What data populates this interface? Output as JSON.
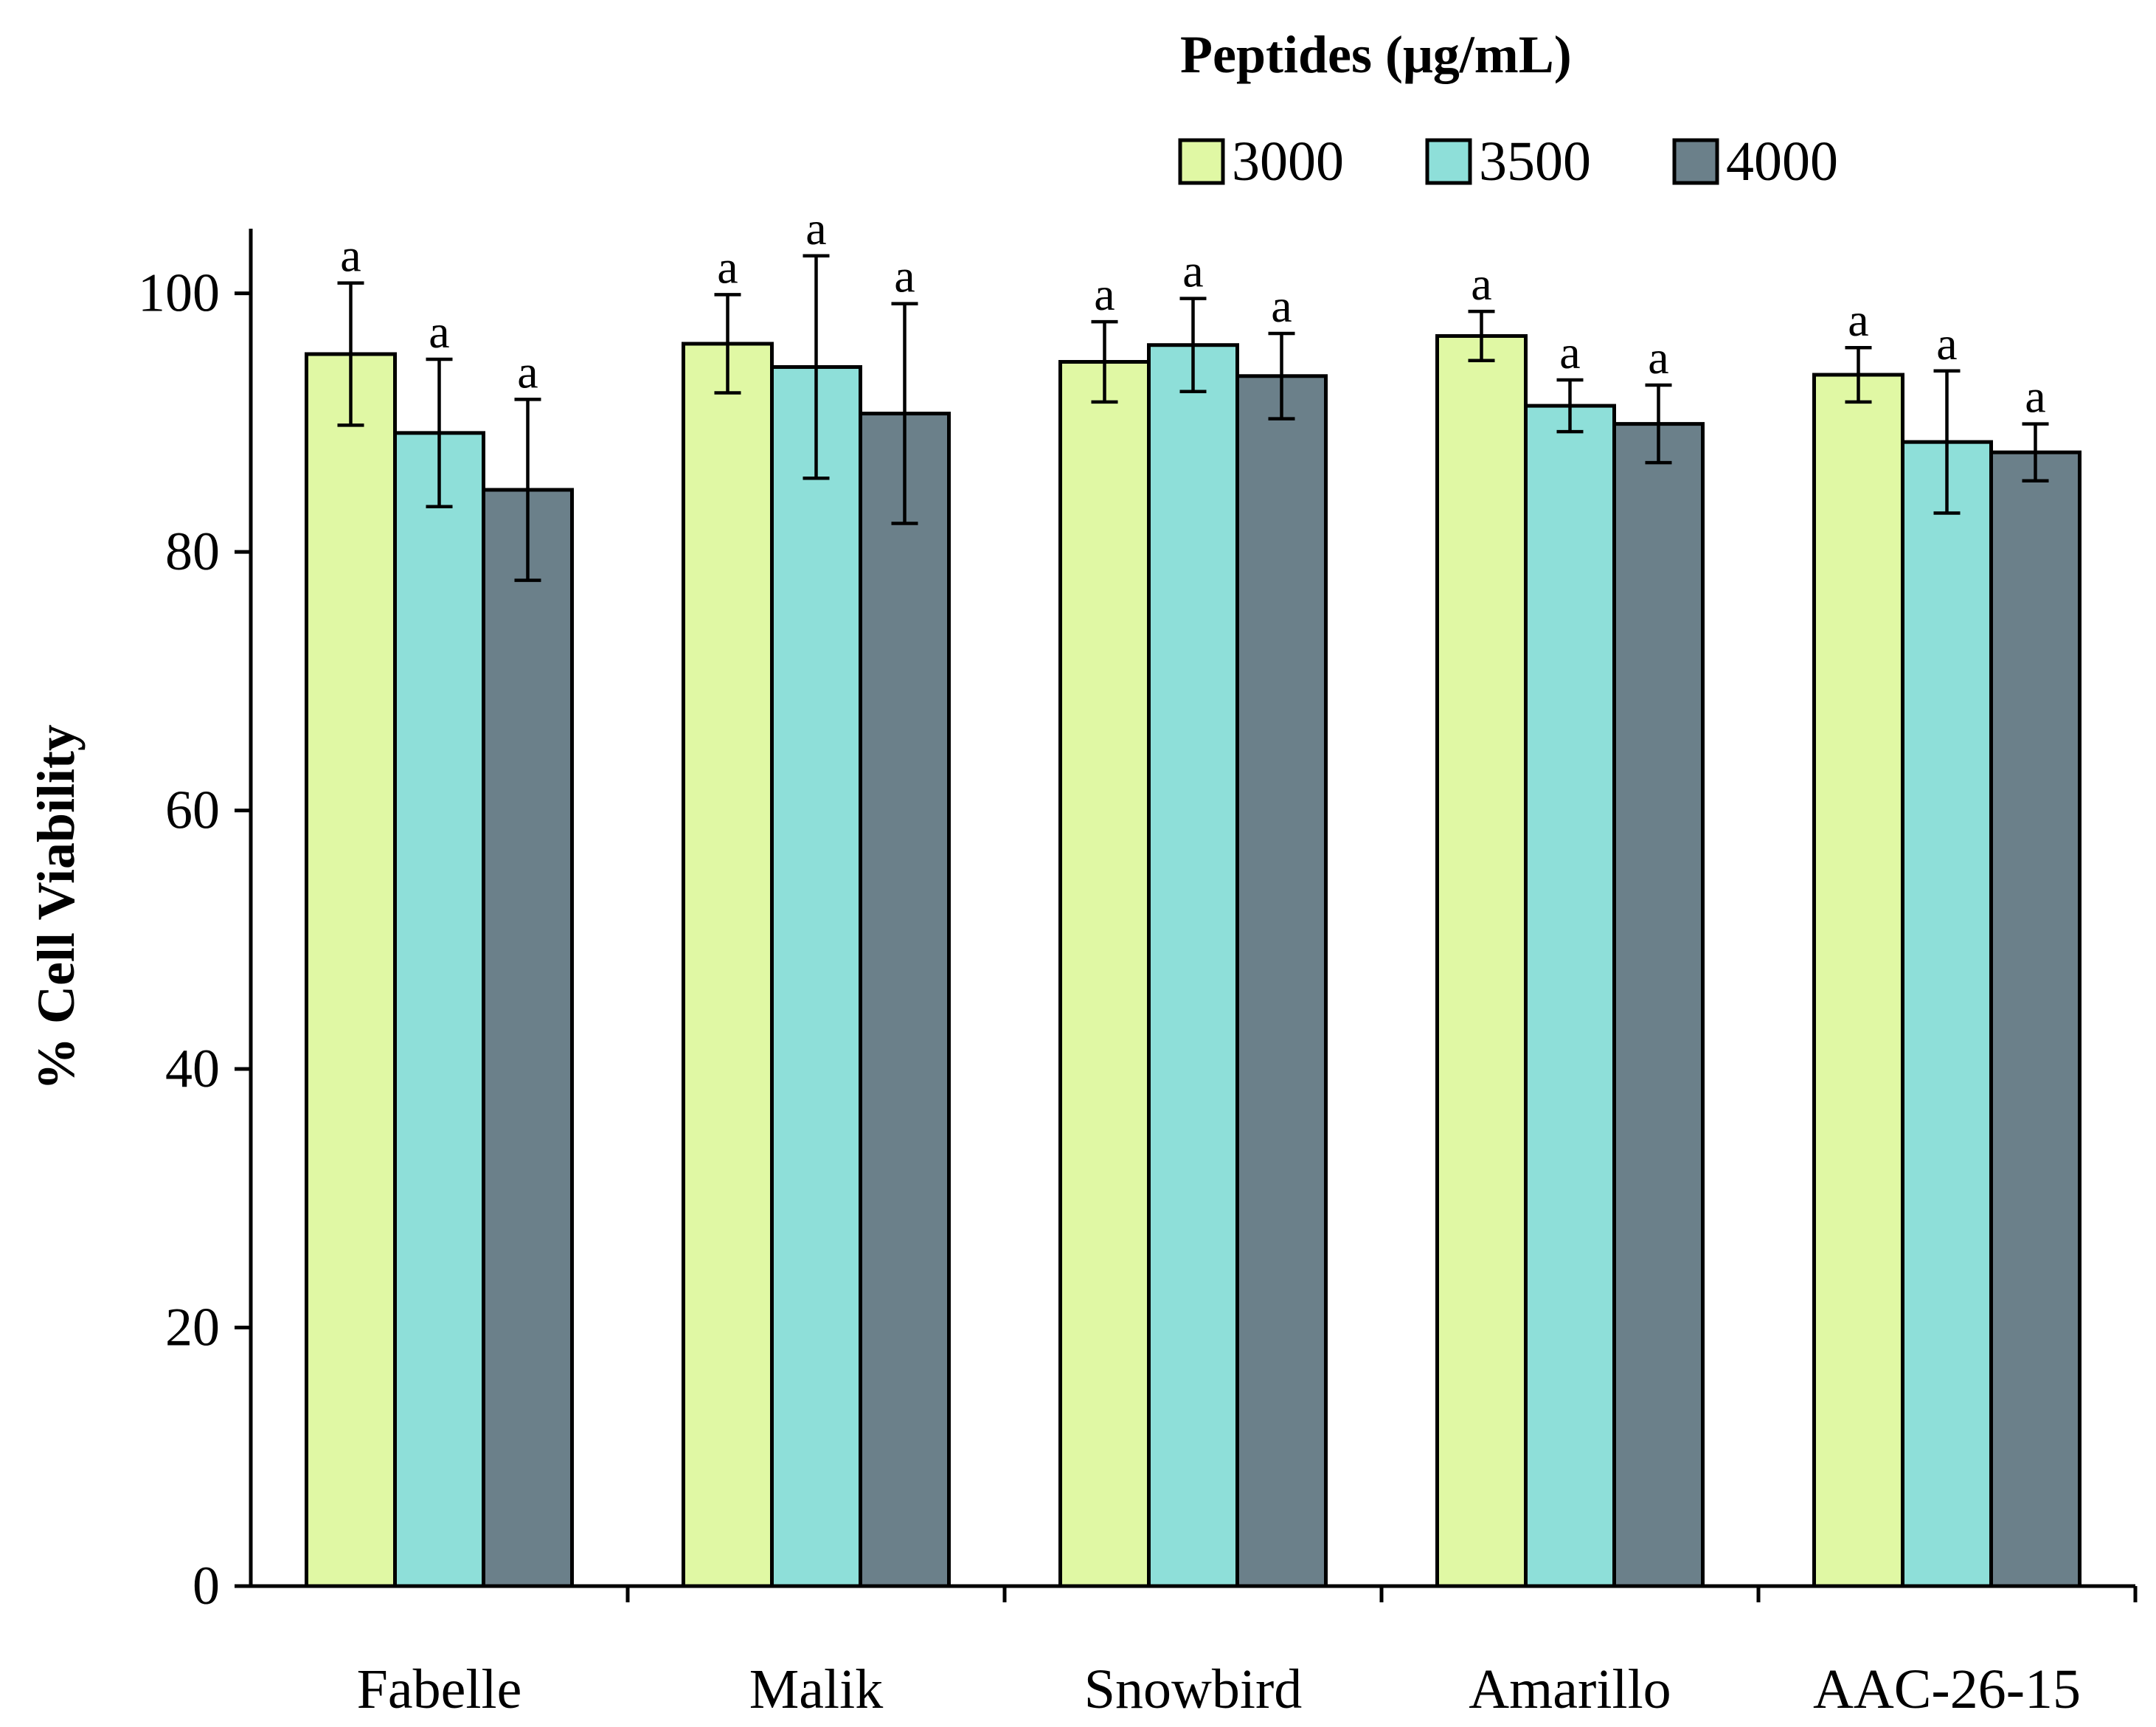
{
  "chart_data": {
    "type": "bar",
    "title": "",
    "xlabel": "",
    "ylabel": "% Cell Viability",
    "ylim": [
      0,
      105
    ],
    "yticks": [
      0,
      20,
      40,
      60,
      80,
      100
    ],
    "categories": [
      "Fabelle",
      "Malik",
      "Snowbird",
      "Amarillo",
      "AAC-26-15"
    ],
    "legend_title": "Peptides (μg/mL)",
    "legend_position": "top-right",
    "series": [
      {
        "name": "3000",
        "color": "#e0f8a4",
        "values": [
          95.3,
          96.1,
          94.7,
          96.7,
          93.7
        ],
        "errors": [
          5.5,
          3.8,
          3.1,
          1.9,
          2.1
        ],
        "labels": [
          "a",
          "a",
          "a",
          "a",
          "a"
        ]
      },
      {
        "name": "3500",
        "color": "#8edfd9",
        "values": [
          89.2,
          94.3,
          96.0,
          91.3,
          88.5
        ],
        "errors": [
          5.7,
          8.6,
          3.6,
          2.0,
          5.5
        ],
        "labels": [
          "a",
          "a",
          "a",
          "a",
          "a"
        ]
      },
      {
        "name": "4000",
        "color": "#6b808a",
        "values": [
          84.8,
          90.7,
          93.6,
          89.9,
          87.7
        ],
        "errors": [
          7.0,
          8.5,
          3.3,
          3.0,
          2.2
        ],
        "labels": [
          "a",
          "a",
          "a",
          "a",
          "a"
        ]
      }
    ]
  }
}
